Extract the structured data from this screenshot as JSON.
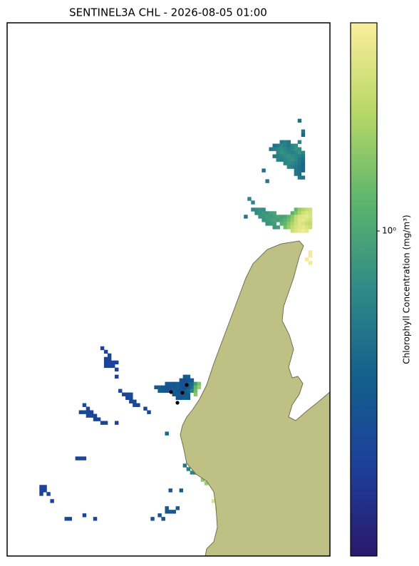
{
  "chart_data": {
    "type": "raster",
    "title": "SENTINEL3A CHL - 2026-08-05 01:00",
    "colorbar_label": "Chlorophyll Concentration (mg/m³)",
    "colormap": [
      "#2a186c",
      "#1d3f9c",
      "#135f8c",
      "#2f8a87",
      "#5db56c",
      "#b8d866",
      "#fbee9b"
    ],
    "cscale": "log",
    "clim": [
      0.18,
      3
    ],
    "cticks": [
      {
        "value": 1,
        "label": "10⁰"
      }
    ],
    "xlim": [
      0,
      90
    ],
    "ylim": [
      150,
      0
    ],
    "cells": [
      [
        76,
        33,
        0.6
      ],
      [
        77,
        33,
        0.65
      ],
      [
        78,
        33,
        0.6
      ],
      [
        74,
        34,
        0.55
      ],
      [
        75,
        34,
        0.6
      ],
      [
        76,
        34,
        0.7
      ],
      [
        77,
        34,
        0.65
      ],
      [
        78,
        34,
        0.6
      ],
      [
        79,
        34,
        0.7
      ],
      [
        80,
        34,
        0.75
      ],
      [
        73,
        35,
        0.6
      ],
      [
        74,
        35,
        0.65
      ],
      [
        75,
        35,
        0.7
      ],
      [
        76,
        35,
        0.75
      ],
      [
        77,
        35,
        0.7
      ],
      [
        78,
        35,
        0.65
      ],
      [
        79,
        35,
        0.7
      ],
      [
        80,
        35,
        0.8
      ],
      [
        81,
        35,
        0.75
      ],
      [
        75,
        36,
        0.7
      ],
      [
        76,
        36,
        0.8
      ],
      [
        77,
        36,
        0.75
      ],
      [
        78,
        36,
        0.7
      ],
      [
        79,
        36,
        0.65
      ],
      [
        80,
        36,
        0.7
      ],
      [
        81,
        36,
        0.8
      ],
      [
        82,
        36,
        0.7
      ],
      [
        74,
        37,
        0.6
      ],
      [
        75,
        37,
        0.65
      ],
      [
        76,
        37,
        0.7
      ],
      [
        77,
        37,
        0.75
      ],
      [
        78,
        37,
        0.8
      ],
      [
        79,
        37,
        0.75
      ],
      [
        80,
        37,
        0.7
      ],
      [
        81,
        37,
        0.65
      ],
      [
        82,
        37,
        0.6
      ],
      [
        75,
        38,
        0.7
      ],
      [
        76,
        38,
        0.65
      ],
      [
        77,
        38,
        0.7
      ],
      [
        78,
        38,
        0.75
      ],
      [
        79,
        38,
        0.8
      ],
      [
        80,
        38,
        0.7
      ],
      [
        81,
        38,
        0.6
      ],
      [
        82,
        38,
        0.55
      ],
      [
        77,
        39,
        0.7
      ],
      [
        78,
        39,
        0.75
      ],
      [
        79,
        39,
        0.7
      ],
      [
        80,
        39,
        0.65
      ],
      [
        81,
        39,
        0.6
      ],
      [
        82,
        39,
        0.5
      ],
      [
        78,
        40,
        0.7
      ],
      [
        79,
        40,
        0.65
      ],
      [
        80,
        40,
        0.6
      ],
      [
        81,
        40,
        0.55
      ],
      [
        82,
        40,
        0.5
      ],
      [
        80,
        41,
        0.6
      ],
      [
        81,
        41,
        0.55
      ],
      [
        82,
        41,
        0.5
      ],
      [
        80,
        42,
        0.6
      ],
      [
        81,
        42,
        0.55
      ],
      [
        81,
        43,
        0.6
      ],
      [
        82,
        43,
        0.55
      ],
      [
        81,
        33,
        0.7
      ],
      [
        82,
        31,
        0.5
      ],
      [
        81,
        27,
        0.55
      ],
      [
        82,
        30,
        0.6
      ],
      [
        72,
        44,
        0.6
      ],
      [
        71,
        41,
        0.55
      ],
      [
        68,
        52,
        0.7
      ],
      [
        69,
        52,
        0.75
      ],
      [
        70,
        52,
        0.8
      ],
      [
        71,
        52,
        0.75
      ],
      [
        80,
        52,
        1.2
      ],
      [
        81,
        52,
        1.6
      ],
      [
        82,
        52,
        1.8
      ],
      [
        83,
        52,
        2
      ],
      [
        84,
        52,
        2.2
      ],
      [
        69,
        53,
        0.75
      ],
      [
        70,
        53,
        0.8
      ],
      [
        71,
        53,
        0.85
      ],
      [
        72,
        53,
        0.8
      ],
      [
        73,
        53,
        0.9
      ],
      [
        74,
        53,
        0.95
      ],
      [
        79,
        53,
        1.1
      ],
      [
        80,
        53,
        1.4
      ],
      [
        81,
        53,
        1.8
      ],
      [
        82,
        53,
        2.2
      ],
      [
        83,
        53,
        2.4
      ],
      [
        84,
        53,
        2.3
      ],
      [
        70,
        54,
        0.8
      ],
      [
        71,
        54,
        0.85
      ],
      [
        72,
        54,
        0.9
      ],
      [
        73,
        54,
        0.85
      ],
      [
        74,
        54,
        0.9
      ],
      [
        75,
        54,
        1
      ],
      [
        76,
        54,
        0.95
      ],
      [
        77,
        54,
        1
      ],
      [
        78,
        54,
        1.2
      ],
      [
        79,
        54,
        1.5
      ],
      [
        80,
        54,
        2
      ],
      [
        81,
        54,
        2.4
      ],
      [
        82,
        54,
        2.5
      ],
      [
        83,
        54,
        2.6
      ],
      [
        84,
        54,
        2.4
      ],
      [
        71,
        55,
        0.8
      ],
      [
        72,
        55,
        0.85
      ],
      [
        73,
        55,
        0.9
      ],
      [
        74,
        55,
        0.95
      ],
      [
        75,
        55,
        0.9
      ],
      [
        76,
        55,
        1
      ],
      [
        77,
        55,
        1.1
      ],
      [
        78,
        55,
        1.3
      ],
      [
        79,
        55,
        1.6
      ],
      [
        80,
        55,
        2.1
      ],
      [
        81,
        55,
        2.5
      ],
      [
        82,
        55,
        2.6
      ],
      [
        83,
        55,
        2.4
      ],
      [
        84,
        55,
        2.2
      ],
      [
        72,
        56,
        0.8
      ],
      [
        73,
        56,
        0.85
      ],
      [
        74,
        56,
        0.9
      ],
      [
        76,
        56,
        1.1
      ],
      [
        77,
        56,
        1.2
      ],
      [
        78,
        56,
        1.5
      ],
      [
        79,
        56,
        1.8
      ],
      [
        80,
        56,
        2.2
      ],
      [
        81,
        56,
        2.5
      ],
      [
        82,
        56,
        2.3
      ],
      [
        83,
        56,
        2.1
      ],
      [
        84,
        56,
        2
      ],
      [
        74,
        57,
        0.85
      ],
      [
        75,
        57,
        0.9
      ],
      [
        77,
        57,
        1.3
      ],
      [
        78,
        57,
        1.6
      ],
      [
        79,
        57,
        2
      ],
      [
        80,
        57,
        2.3
      ],
      [
        81,
        57,
        2.5
      ],
      [
        82,
        57,
        2.6
      ],
      [
        83,
        57,
        2.4
      ],
      [
        84,
        57,
        2.2
      ],
      [
        79,
        58,
        2.1
      ],
      [
        80,
        58,
        2.4
      ],
      [
        81,
        58,
        2.7
      ],
      [
        82,
        58,
        2.8
      ],
      [
        83,
        58,
        2.6
      ],
      [
        68,
        50,
        0.7
      ],
      [
        66,
        54,
        0.6
      ],
      [
        67,
        49,
        0.7
      ],
      [
        84,
        64,
        2.9
      ],
      [
        84,
        65,
        2.8
      ],
      [
        83,
        66,
        2.9
      ],
      [
        84,
        67,
        2.8
      ],
      [
        49,
        99,
        0.42
      ],
      [
        50,
        99,
        0.45
      ],
      [
        48,
        100,
        0.4
      ],
      [
        49,
        100,
        0.35
      ],
      [
        50,
        100,
        0.4
      ],
      [
        51,
        100,
        0.45
      ],
      [
        44,
        101,
        0.42
      ],
      [
        45,
        101,
        0.45
      ],
      [
        46,
        101,
        0.4
      ],
      [
        47,
        101,
        0.42
      ],
      [
        48,
        101,
        0.38
      ],
      [
        49,
        101,
        0.4
      ],
      [
        50,
        101,
        0.45
      ],
      [
        51,
        101,
        0.5
      ],
      [
        52,
        101,
        0.9
      ],
      [
        53,
        101,
        1.4
      ],
      [
        41,
        102,
        0.42
      ],
      [
        42,
        102,
        0.45
      ],
      [
        43,
        102,
        0.4
      ],
      [
        44,
        102,
        0.38
      ],
      [
        45,
        102,
        0.4
      ],
      [
        46,
        102,
        0.42
      ],
      [
        47,
        102,
        0.45
      ],
      [
        48,
        102,
        0.4
      ],
      [
        49,
        102,
        0.35
      ],
      [
        50,
        102,
        0.4
      ],
      [
        51,
        102,
        0.55
      ],
      [
        52,
        102,
        1.2
      ],
      [
        53,
        102,
        1.6
      ],
      [
        42,
        103,
        0.45
      ],
      [
        43,
        103,
        0.42
      ],
      [
        44,
        103,
        0.4
      ],
      [
        45,
        103,
        0.42
      ],
      [
        46,
        103,
        0.45
      ],
      [
        47,
        103,
        0.4
      ],
      [
        48,
        103,
        0.38
      ],
      [
        49,
        103,
        0.42
      ],
      [
        50,
        103,
        0.5
      ],
      [
        51,
        103,
        0.7
      ],
      [
        52,
        103,
        1.3
      ],
      [
        46,
        104,
        0.42
      ],
      [
        47,
        104,
        0.45
      ],
      [
        48,
        104,
        0.4
      ],
      [
        49,
        104,
        0.42
      ],
      [
        50,
        104,
        0.45
      ],
      [
        52,
        104,
        1.5
      ],
      [
        47,
        105,
        0.4
      ],
      [
        48,
        105,
        0.42
      ],
      [
        49,
        105,
        0.45
      ],
      [
        50,
        105,
        0.4
      ],
      [
        26,
        91,
        0.3
      ],
      [
        27,
        92,
        0.3
      ],
      [
        28,
        93,
        0.32
      ],
      [
        27,
        94,
        0.3
      ],
      [
        28,
        94,
        0.33
      ],
      [
        27,
        95,
        0.3
      ],
      [
        28,
        95,
        0.3
      ],
      [
        29,
        95,
        0.32
      ],
      [
        30,
        95,
        0.3
      ],
      [
        27,
        96,
        0.3
      ],
      [
        28,
        96,
        0.32
      ],
      [
        29,
        96,
        0.3
      ],
      [
        30,
        97,
        0.3
      ],
      [
        30,
        99,
        0.3
      ],
      [
        31,
        103,
        0.33
      ],
      [
        32,
        104,
        0.32
      ],
      [
        33,
        104,
        0.33
      ],
      [
        34,
        104,
        0.35
      ],
      [
        33,
        105,
        0.3
      ],
      [
        34,
        105,
        0.33
      ],
      [
        34,
        106,
        0.32
      ],
      [
        35,
        106,
        0.35
      ],
      [
        35,
        107,
        0.33
      ],
      [
        36,
        107,
        0.3
      ],
      [
        38,
        108,
        0.32
      ],
      [
        39,
        109,
        0.3
      ],
      [
        21,
        107,
        0.33
      ],
      [
        22,
        108,
        0.3
      ],
      [
        20,
        109,
        0.32
      ],
      [
        21,
        109,
        0.35
      ],
      [
        22,
        109,
        0.33
      ],
      [
        23,
        109,
        0.3
      ],
      [
        22,
        110,
        0.33
      ],
      [
        23,
        110,
        0.35
      ],
      [
        24,
        110,
        0.33
      ],
      [
        24,
        111,
        0.3
      ],
      [
        25,
        111,
        0.32
      ],
      [
        26,
        112,
        0.3
      ],
      [
        27,
        112,
        0.32
      ],
      [
        30,
        112,
        0.3
      ],
      [
        9,
        130,
        0.3
      ],
      [
        10,
        130,
        0.32
      ],
      [
        9,
        131,
        0.33
      ],
      [
        10,
        131,
        0.3
      ],
      [
        11,
        132,
        0.3
      ],
      [
        9,
        132,
        0.3
      ],
      [
        12,
        134,
        0.3
      ],
      [
        19,
        122,
        0.3
      ],
      [
        20,
        122,
        0.32
      ],
      [
        21,
        122,
        0.3
      ],
      [
        16,
        139,
        0.35
      ],
      [
        17,
        139,
        0.33
      ],
      [
        21,
        138,
        0.3
      ],
      [
        24,
        139,
        0.32
      ],
      [
        42,
        138,
        0.4
      ],
      [
        43,
        139,
        0.38
      ],
      [
        44,
        137,
        0.4
      ],
      [
        45,
        137,
        0.42
      ],
      [
        46,
        137,
        0.4
      ],
      [
        47,
        136,
        0.42
      ],
      [
        40,
        139,
        0.4
      ],
      [
        44,
        136,
        0.42
      ],
      [
        44,
        115,
        0.5
      ],
      [
        49,
        124,
        0.6
      ],
      [
        50,
        125,
        0.65
      ],
      [
        51,
        126,
        0.7
      ],
      [
        52,
        126,
        0.65
      ],
      [
        45,
        131,
        0.4
      ],
      [
        48,
        131,
        0.45
      ],
      [
        54,
        128,
        1.5
      ],
      [
        55,
        129,
        1.6
      ],
      [
        57,
        134,
        2.4
      ],
      [
        58,
        135,
        2.6
      ],
      [
        58,
        136,
        2.5
      ]
    ]
  }
}
